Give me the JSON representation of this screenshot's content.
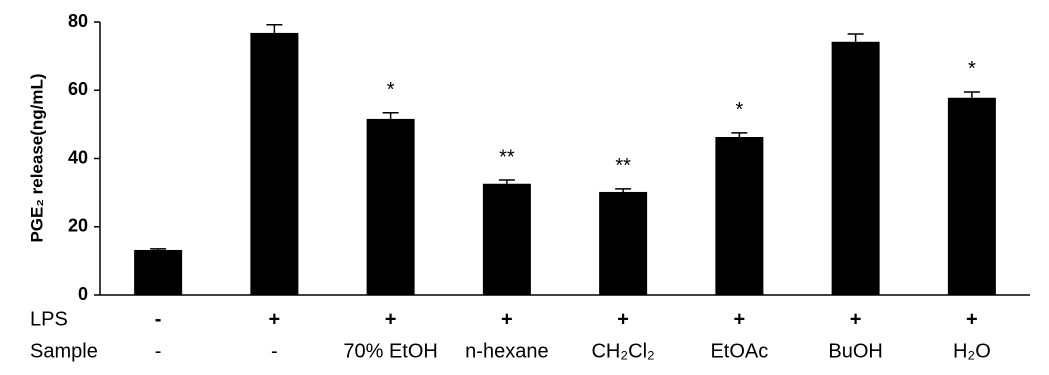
{
  "chart_data": {
    "type": "bar",
    "ylabel": "PGE₂ release(ng/mL)",
    "values": [
      13.2,
      76.8,
      51.6,
      32.6,
      30.2,
      46.3,
      74.2,
      57.8
    ],
    "errors": [
      0.3,
      2.4,
      1.8,
      1.1,
      0.9,
      1.2,
      2.3,
      1.7
    ],
    "annotations": [
      null,
      null,
      "*",
      "**",
      "**",
      "*",
      null,
      "*"
    ],
    "rows": [
      {
        "label": "LPS",
        "values": [
          "-",
          "+",
          "+",
          "+",
          "+",
          "+",
          "+",
          "+"
        ]
      },
      {
        "label": "Sample",
        "values": [
          "-",
          "-",
          "70% EtOH",
          "n-hexane",
          "CH₂Cl₂",
          "EtOAc",
          "BuOH",
          "H₂O"
        ]
      }
    ],
    "color": "#000000",
    "ylim": [
      0,
      80
    ],
    "yticks": [
      0,
      20,
      40,
      60,
      80
    ],
    "grid": false
  }
}
